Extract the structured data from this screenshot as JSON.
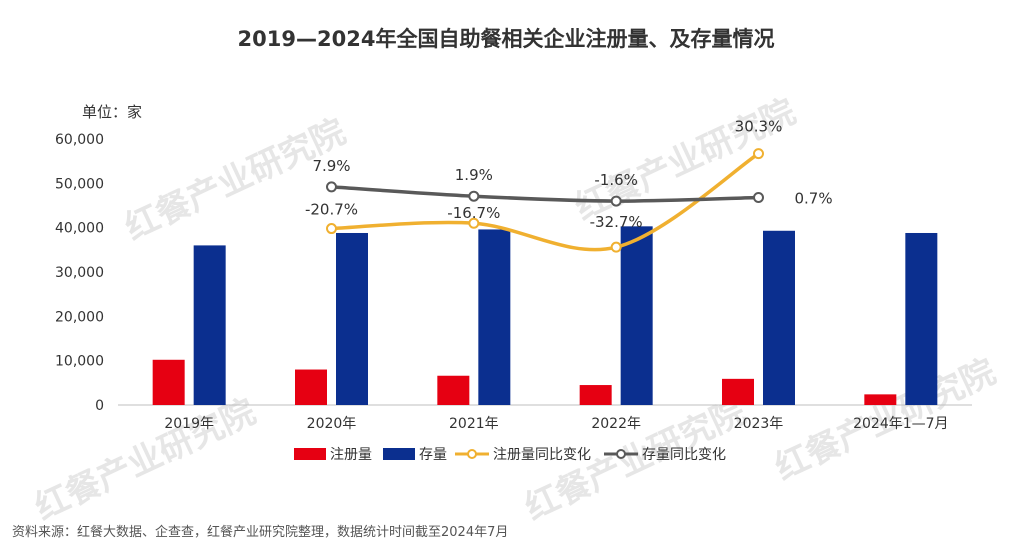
{
  "chart_data": {
    "type": "bar",
    "title": "2019—2024年全国自助餐相关企业注册量、及存量情况",
    "unit_label": "单位：家",
    "categories": [
      "2019年",
      "2020年",
      "2021年",
      "2022年",
      "2023年",
      "2024年1—7月"
    ],
    "ylim": [
      0,
      60000
    ],
    "y_ticks": [
      "0",
      "10,000",
      "20,000",
      "30,000",
      "40,000",
      "50,000",
      "60,000"
    ],
    "grid": false,
    "legend_position": "bottom",
    "series": [
      {
        "name": "注册量",
        "kind": "bar",
        "color": "#e60012",
        "values": [
          10200,
          8000,
          6600,
          4500,
          5900,
          2400
        ]
      },
      {
        "name": "存量",
        "kind": "bar",
        "color": "#0b2f8f",
        "values": [
          36000,
          38800,
          39600,
          40300,
          39300,
          38800
        ]
      },
      {
        "name": "注册量同比变化",
        "kind": "line",
        "color": "#f0b030",
        "points": [
          null,
          39800,
          41000,
          35600,
          56700,
          null
        ],
        "labels": [
          null,
          "-20.7%",
          "-16.7%",
          "-32.7%",
          "30.3%",
          null
        ]
      },
      {
        "name": "存量同比变化",
        "kind": "line",
        "color": "#595959",
        "points": [
          49200,
          47100,
          46000,
          46800,
          null,
          null
        ],
        "labels": [
          "7.9%",
          "1.9%",
          "-1.6%",
          "0.7%",
          null,
          null
        ]
      }
    ]
  },
  "watermark": "红餐产业研究院",
  "source_note": "资料来源：红餐大数据、企查查，红餐产业研究院整理，数据统计时间截至2024年7月"
}
